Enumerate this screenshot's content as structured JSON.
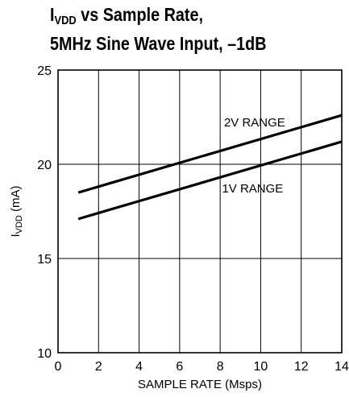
{
  "chart_data": {
    "type": "line",
    "title_main": "I",
    "title_sub": "VDD",
    "title_rest": " vs Sample Rate,",
    "title_line2": "5MHz Sine Wave Input, –1dB",
    "xlabel": "SAMPLE RATE (Msps)",
    "ylabel_main": "I",
    "ylabel_sub": "VDD",
    "ylabel_rest": " (mA)",
    "xlim": [
      0,
      14
    ],
    "ylim": [
      10,
      25
    ],
    "x_ticks": [
      0,
      2,
      4,
      6,
      8,
      10,
      12,
      14
    ],
    "y_ticks": [
      10,
      15,
      20,
      25
    ],
    "grid": true,
    "series": [
      {
        "name": "2V RANGE",
        "x": [
          1,
          14
        ],
        "y": [
          18.5,
          22.6
        ]
      },
      {
        "name": "1V RANGE",
        "x": [
          1,
          14
        ],
        "y": [
          17.1,
          21.2
        ]
      }
    ],
    "annotations": [
      {
        "text": "2V RANGE",
        "x": 9.7,
        "y": 22.0
      },
      {
        "text": "1V RANGE",
        "x": 9.6,
        "y": 18.5
      }
    ],
    "line_color": "#000000",
    "grid_color": "#000000"
  }
}
